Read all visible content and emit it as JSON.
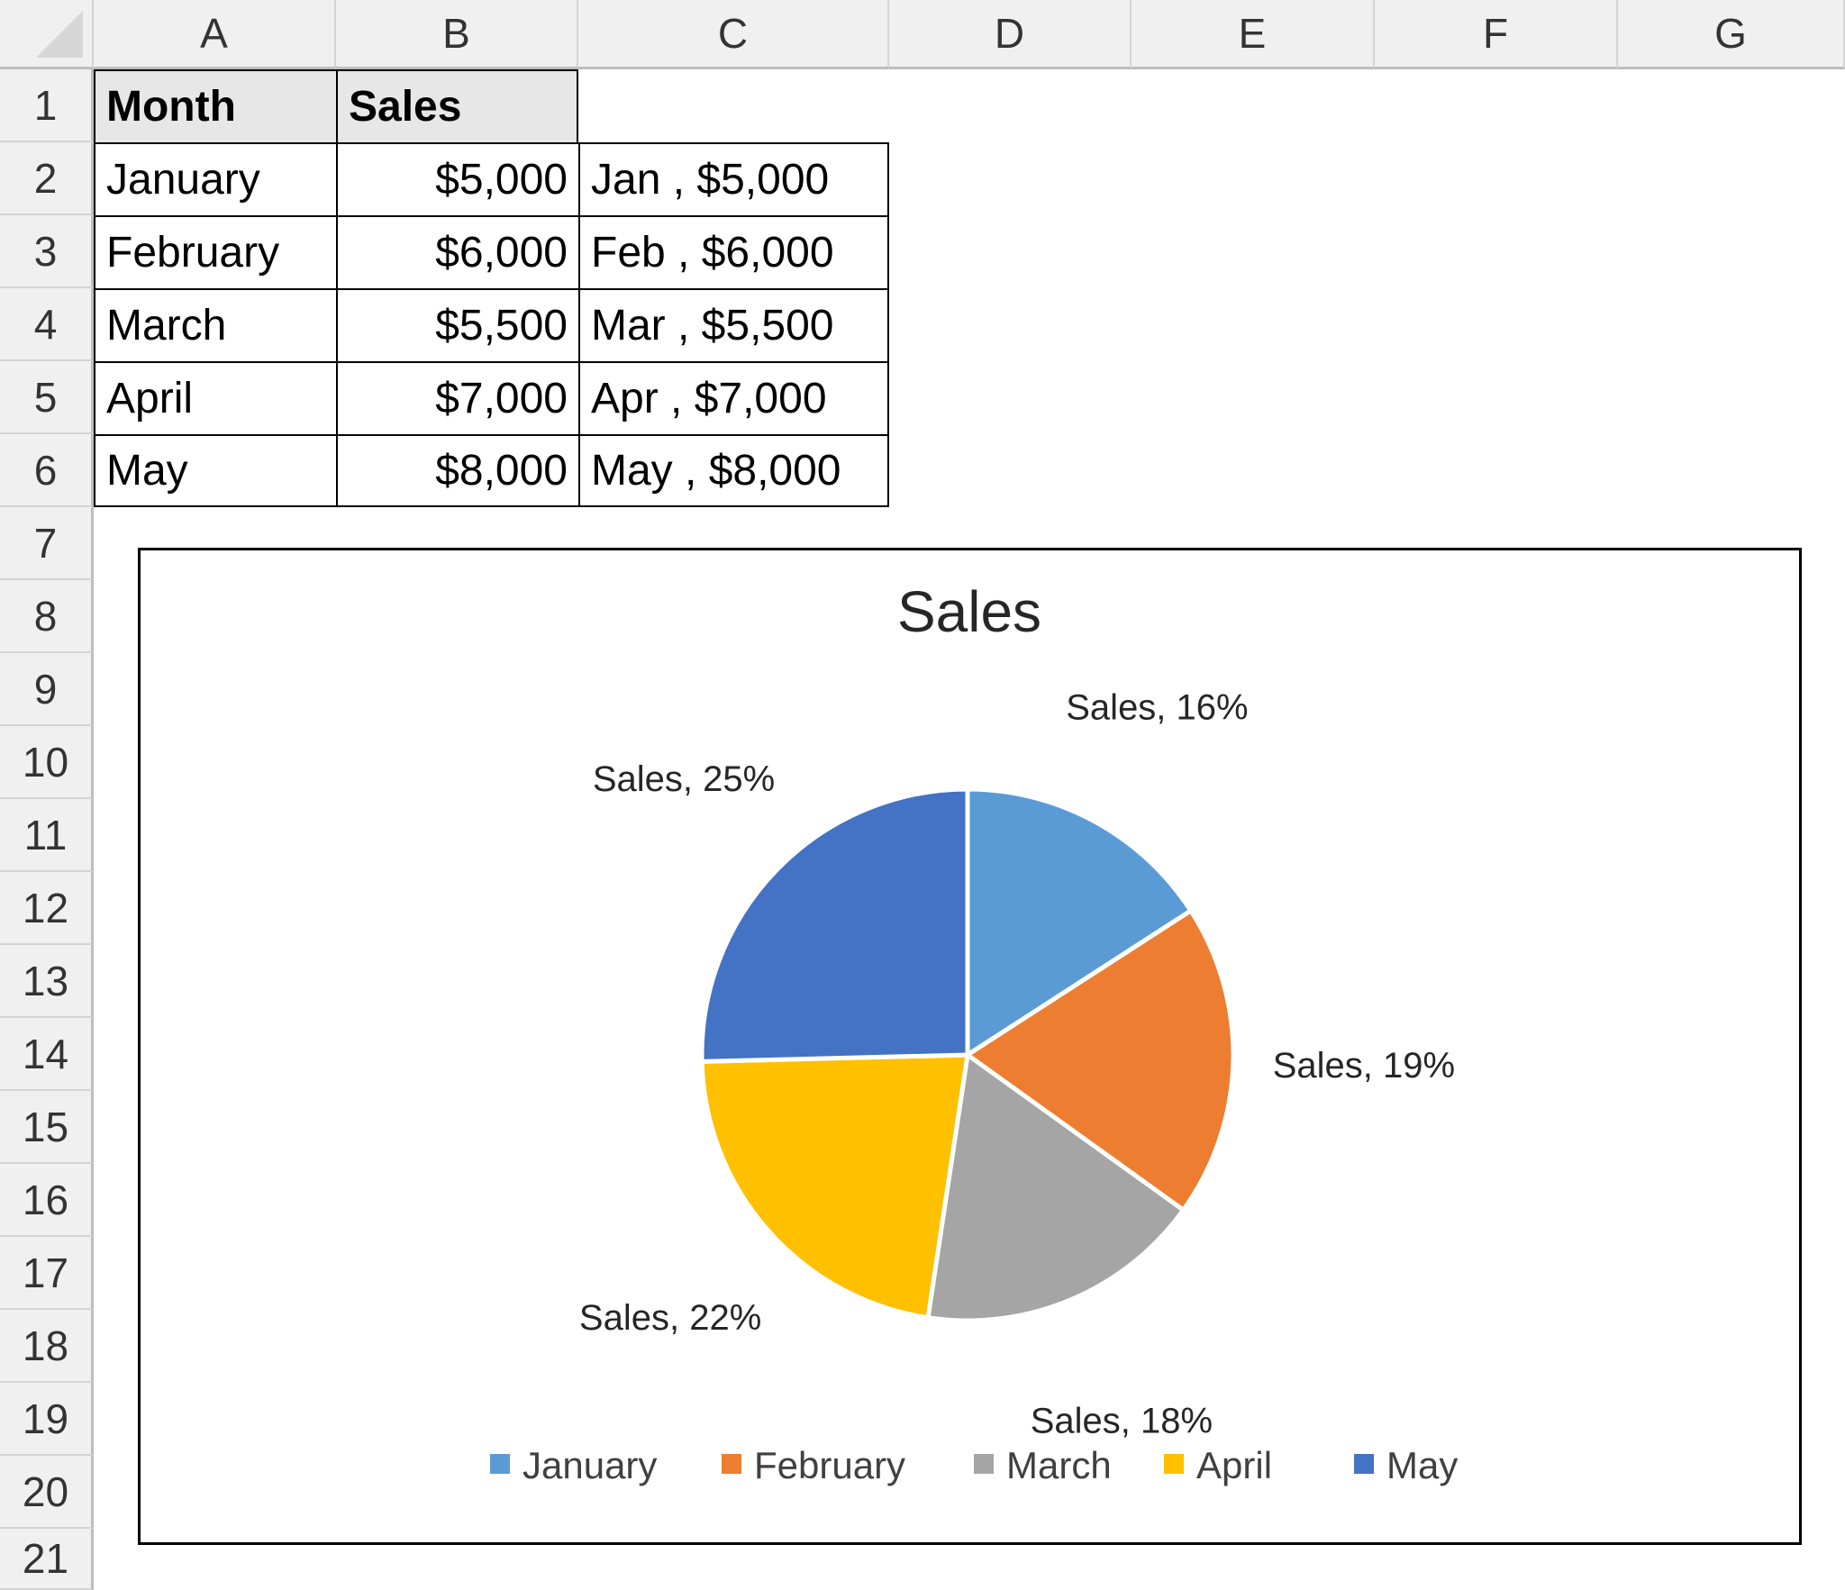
{
  "columns": [
    "A",
    "B",
    "C",
    "D",
    "E",
    "F",
    "G"
  ],
  "rows": [
    "1",
    "2",
    "3",
    "4",
    "5",
    "6",
    "7",
    "8",
    "9",
    "10",
    "11",
    "12",
    "13",
    "14",
    "15",
    "16",
    "17",
    "18",
    "19",
    "20",
    "21"
  ],
  "table": {
    "headers": [
      "Month",
      "Sales"
    ],
    "data": [
      {
        "month": "January",
        "sales": "$5,000",
        "label": "Jan , $5,000"
      },
      {
        "month": "February",
        "sales": "$6,000",
        "label": "Feb , $6,000"
      },
      {
        "month": "March",
        "sales": "$5,500",
        "label": "Mar , $5,500"
      },
      {
        "month": "April",
        "sales": "$7,000",
        "label": "Apr , $7,000"
      },
      {
        "month": "May",
        "sales": "$8,000",
        "label": "May , $8,000"
      }
    ]
  },
  "chart_data": {
    "type": "pie",
    "title": "Sales",
    "categories": [
      "January",
      "February",
      "March",
      "April",
      "May"
    ],
    "values": [
      5000,
      6000,
      5500,
      7000,
      8000
    ],
    "data_labels": [
      "Sales, 16%",
      "Sales, 19%",
      "Sales, 18%",
      "Sales, 22%",
      "Sales, 25%"
    ],
    "colors": [
      "#5b9bd5",
      "#ed7d31",
      "#a5a5a5",
      "#ffc000",
      "#4472c4"
    ],
    "legend": "bottom"
  }
}
